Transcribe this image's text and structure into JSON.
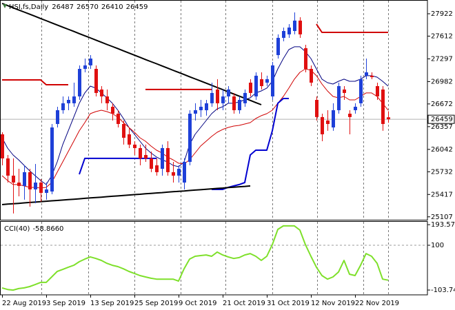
{
  "chart_data": {
    "type": "candlestick",
    "title": "HSI,fs,Daily",
    "categories": [
      "22 Aug 2019",
      null,
      null,
      null,
      null,
      null,
      null,
      null,
      "3 Sep 2019",
      null,
      null,
      null,
      null,
      null,
      null,
      null,
      "13 Sep 2019",
      null,
      null,
      null,
      null,
      null,
      null,
      null,
      "25 Sep 2019",
      null,
      null,
      null,
      null,
      null,
      null,
      null,
      "9 Oct 2019",
      null,
      null,
      null,
      null,
      null,
      null,
      null,
      "21 Oct 2019",
      null,
      null,
      null,
      null,
      null,
      null,
      null,
      "31 Oct 2019",
      null,
      null,
      null,
      null,
      null,
      null,
      null,
      "12 Nov 2019",
      null,
      null,
      null,
      null,
      null,
      null,
      null,
      "22 Nov 2019",
      null,
      null,
      null,
      null,
      null,
      null
    ],
    "open": [
      26251,
      25917,
      25678,
      25582,
      25535,
      25726,
      25487,
      25582,
      25439,
      25458,
      26394,
      26585,
      26681,
      26681,
      26776,
      27158,
      27206,
      27158,
      26872,
      26776,
      26633,
      26537,
      26394,
      26251,
      26108,
      26060,
      25964,
      25917,
      25821,
      25773,
      26060,
      25726,
      25678,
      25582,
      25869,
      26537,
      26585,
      26585,
      26681,
      26872,
      26681,
      26776,
      26776,
      26585,
      26681,
      26967,
      26776,
      27015,
      26967,
      26776,
      27349,
      27588,
      27636,
      27683,
      27827,
      27445,
      27158,
      26728,
      26490,
      26442,
      26346,
      26585,
      26872,
      26537,
      26585,
      26681,
      27063,
      27063,
      26919,
      26872,
      26487
    ],
    "high": [
      26279,
      25964,
      25917,
      25773,
      25821,
      25773,
      25840,
      25630,
      25582,
      26394,
      26633,
      26776,
      26776,
      26967,
      27206,
      27301,
      27349,
      27206,
      26919,
      26872,
      26681,
      26585,
      26442,
      26346,
      26155,
      26108,
      26108,
      26012,
      25917,
      26108,
      26155,
      25869,
      25821,
      25917,
      26585,
      26681,
      26728,
      26728,
      26967,
      27015,
      26872,
      26919,
      26824,
      26776,
      26872,
      27015,
      27110,
      27110,
      27063,
      27254,
      27636,
      27731,
      27779,
      27941,
      27874,
      27492,
      27206,
      26776,
      26537,
      26585,
      26681,
      26967,
      26919,
      26585,
      26681,
      27063,
      27301,
      27110,
      26967,
      26919,
      26570
    ],
    "low": [
      25821,
      25582,
      25153,
      25391,
      25344,
      25248,
      25296,
      25315,
      25344,
      25420,
      26346,
      26537,
      26585,
      26633,
      26728,
      27110,
      27158,
      26776,
      26681,
      26585,
      26442,
      26346,
      26108,
      26060,
      25964,
      25821,
      25869,
      25726,
      25678,
      25678,
      25678,
      25582,
      25582,
      25487,
      25821,
      26442,
      26490,
      26509,
      26633,
      26585,
      26585,
      26681,
      26537,
      26537,
      26633,
      26776,
      26728,
      26872,
      26919,
      26728,
      27301,
      27540,
      27588,
      27636,
      27588,
      27110,
      26919,
      26442,
      26155,
      26299,
      26299,
      26537,
      26728,
      26251,
      26537,
      26633,
      27015,
      27015,
      26728,
      26299,
      26410
    ],
    "close": [
      25917,
      25678,
      25582,
      25535,
      25726,
      25487,
      25582,
      25439,
      25487,
      26346,
      26585,
      26681,
      26728,
      26776,
      27158,
      27206,
      27301,
      26824,
      26776,
      26681,
      26537,
      26394,
      26203,
      26108,
      26060,
      25917,
      25917,
      25773,
      25726,
      26060,
      25726,
      25678,
      25773,
      25869,
      26537,
      26585,
      26633,
      26681,
      26824,
      26681,
      26776,
      26872,
      26585,
      26728,
      26824,
      26824,
      27063,
      26919,
      27015,
      27206,
      27588,
      27683,
      27731,
      27827,
      27636,
      27158,
      26967,
      26490,
      26251,
      26394,
      26585,
      26919,
      26824,
      26490,
      26633,
      27015,
      27110,
      27043,
      26776,
      26394,
      26459
    ],
    "up_color": "#1e40d8",
    "down_color": "#e01010",
    "ylim": [
      25076,
      28084
    ],
    "yticks": [
      27922,
      27612,
      27297,
      26982,
      26672,
      26357,
      26042,
      25732,
      25417,
      25107
    ],
    "overlays": [
      {
        "type": "line",
        "color": "#000080",
        "width": 1,
        "values": [
          26203,
          26060,
          25964,
          25897,
          25821,
          25745,
          25678,
          25611,
          25554,
          25678,
          25869,
          26108,
          26299,
          26490,
          26681,
          26824,
          26919,
          26891,
          26824,
          26757,
          26681,
          26585,
          26470,
          26346,
          26251,
          26155,
          26060,
          25993,
          25936,
          25897,
          25869,
          25821,
          25802,
          25869,
          26108,
          26251,
          26346,
          26442,
          26537,
          26604,
          26633,
          26681,
          26681,
          26700,
          26728,
          26757,
          26824,
          26852,
          26891,
          26986,
          27158,
          27301,
          27425,
          27464,
          27464,
          27397,
          27301,
          27158,
          27015,
          26967,
          26948,
          26986,
          27015,
          26986,
          26986,
          27015,
          27063,
          27063,
          27043,
          26986,
          26919
        ]
      },
      {
        "type": "line",
        "color": "#d00000",
        "width": 1,
        "values": [
          25678,
          25611,
          25554,
          25554,
          25535,
          25515,
          25515,
          25506,
          25515,
          25582,
          25726,
          25869,
          26012,
          26155,
          26299,
          26413,
          26537,
          26566,
          26585,
          26566,
          26537,
          26490,
          26413,
          26346,
          26279,
          26203,
          26155,
          26088,
          26031,
          25993,
          25936,
          25897,
          25850,
          25840,
          25897,
          25993,
          26088,
          26155,
          26222,
          26279,
          26318,
          26346,
          26365,
          26375,
          26394,
          26413,
          26470,
          26509,
          26537,
          26585,
          26681,
          26776,
          26891,
          27015,
          27110,
          27158,
          27139,
          27063,
          26948,
          26852,
          26776,
          26757,
          26776,
          26728,
          26728,
          26776,
          26824,
          26824,
          26776,
          26681,
          26585
        ]
      },
      {
        "type": "line",
        "color": "#0000d0",
        "width": 2,
        "values": [
          null,
          null,
          null,
          null,
          null,
          null,
          null,
          null,
          null,
          null,
          null,
          null,
          null,
          null,
          25697,
          25917,
          25917,
          25917,
          25917,
          25917,
          25917,
          25917,
          25917,
          25917,
          25917,
          25917,
          25917,
          25917,
          25917,
          null,
          null,
          null,
          null,
          null,
          null,
          null,
          null,
          null,
          25487,
          25487,
          25487,
          25515,
          25535,
          25554,
          25582,
          25964,
          26031,
          26031,
          26031,
          26299,
          26681,
          26747,
          26747,
          null,
          null,
          null,
          null,
          null,
          null,
          null,
          null,
          null,
          null,
          null,
          null,
          null,
          null,
          null,
          null,
          null,
          null
        ]
      },
      {
        "type": "line",
        "color": "#d00000",
        "width": 2,
        "values": [
          27005,
          27005,
          27005,
          27005,
          27005,
          27005,
          27005,
          27005,
          26938,
          26938,
          26938,
          26938,
          26938,
          null,
          null,
          null,
          null,
          null,
          null,
          null,
          null,
          null,
          null,
          null,
          null,
          null,
          26872,
          26872,
          26872,
          26872,
          26872,
          26872,
          26872,
          26872,
          26872,
          26872,
          26872,
          26872,
          26872,
          null,
          null,
          null,
          null,
          null,
          null,
          null,
          null,
          null,
          null,
          null,
          null,
          null,
          null,
          null,
          null,
          null,
          null,
          27779,
          27664,
          27664,
          27664,
          27664,
          27664,
          27664,
          27664,
          27664,
          27664,
          27664,
          27664,
          27664,
          27664
        ]
      },
      {
        "type": "line",
        "color": "#000000",
        "width": 2,
        "values": [
          28065,
          28035,
          28005,
          27975,
          27946,
          27916,
          27886,
          27856,
          27826,
          27796,
          27766,
          27736,
          27707,
          27677,
          27647,
          27617,
          27587,
          27557,
          27527,
          27497,
          27468,
          27438,
          27408,
          27378,
          27348,
          27318,
          27288,
          27258,
          27229,
          27199,
          27169,
          27139,
          27109,
          27079,
          27049,
          27019,
          26990,
          26960,
          26930,
          26900,
          26870,
          26840,
          26810,
          26780,
          26751,
          26721,
          26691,
          26661,
          null,
          null,
          null,
          null,
          null,
          null,
          null,
          null,
          null,
          null,
          null,
          null,
          null,
          null,
          null,
          null,
          null,
          null,
          null,
          null,
          null,
          null,
          null
        ]
      },
      {
        "type": "line",
        "color": "#000000",
        "width": 2,
        "values": [
          25277,
          25283,
          25288,
          25294,
          25300,
          25306,
          25311,
          25317,
          25323,
          25329,
          25334,
          25340,
          25346,
          25351,
          25357,
          25363,
          25369,
          25374,
          25380,
          25386,
          25392,
          25397,
          25403,
          25409,
          25415,
          25420,
          25426,
          25432,
          25438,
          25443,
          25449,
          25455,
          25461,
          25466,
          25472,
          25478,
          25483,
          25489,
          25495,
          25501,
          25506,
          25512,
          25518,
          25524,
          25529,
          25535,
          null,
          null,
          null,
          null,
          null,
          null,
          null,
          null,
          null,
          null,
          null,
          null,
          null,
          null,
          null,
          null,
          null,
          null,
          null,
          null,
          null,
          null,
          null,
          null,
          null
        ]
      }
    ],
    "indicator": {
      "type": "line",
      "title": "CCI(40)",
      "color": "#7ee02a",
      "values": [
        -94,
        -101,
        -104,
        -97,
        -94,
        -88,
        -79,
        -69,
        -69,
        -44,
        -19,
        -10,
        0,
        9,
        25,
        37,
        47,
        40,
        31,
        18,
        9,
        3,
        -7,
        -19,
        -28,
        -38,
        -44,
        -50,
        -54,
        -54,
        -54,
        -54,
        -63,
        -7,
        37,
        50,
        53,
        56,
        50,
        69,
        56,
        47,
        40,
        44,
        56,
        62,
        50,
        31,
        50,
        103,
        172,
        188,
        188,
        188,
        169,
        103,
        50,
        0,
        -38,
        -54,
        -44,
        -22,
        31,
        -32,
        -38,
        9,
        62,
        50,
        18,
        -54,
        -58.866
      ],
      "value_labels": [
        null,
        null,
        null,
        null,
        null,
        null,
        null,
        null,
        null,
        null,
        null,
        null,
        null,
        null,
        null,
        null,
        null,
        null,
        null,
        null,
        null,
        null,
        null,
        null,
        null,
        null,
        null,
        null,
        null,
        null,
        null,
        null,
        null,
        null,
        null,
        null,
        null,
        null,
        null,
        null,
        null,
        null,
        null,
        null,
        null,
        null,
        null,
        null,
        null,
        null,
        null,
        null,
        null,
        null,
        null,
        null,
        null,
        null,
        null,
        null,
        null,
        null,
        null,
        null,
        null,
        null,
        null,
        null,
        null,
        null,
        "-58.8660"
      ],
      "ylim": [
        -125.6,
        206.6
      ],
      "yticks": [
        193.5745,
        100,
        -103.744
      ],
      "levels": [
        100
      ]
    }
  }
}
